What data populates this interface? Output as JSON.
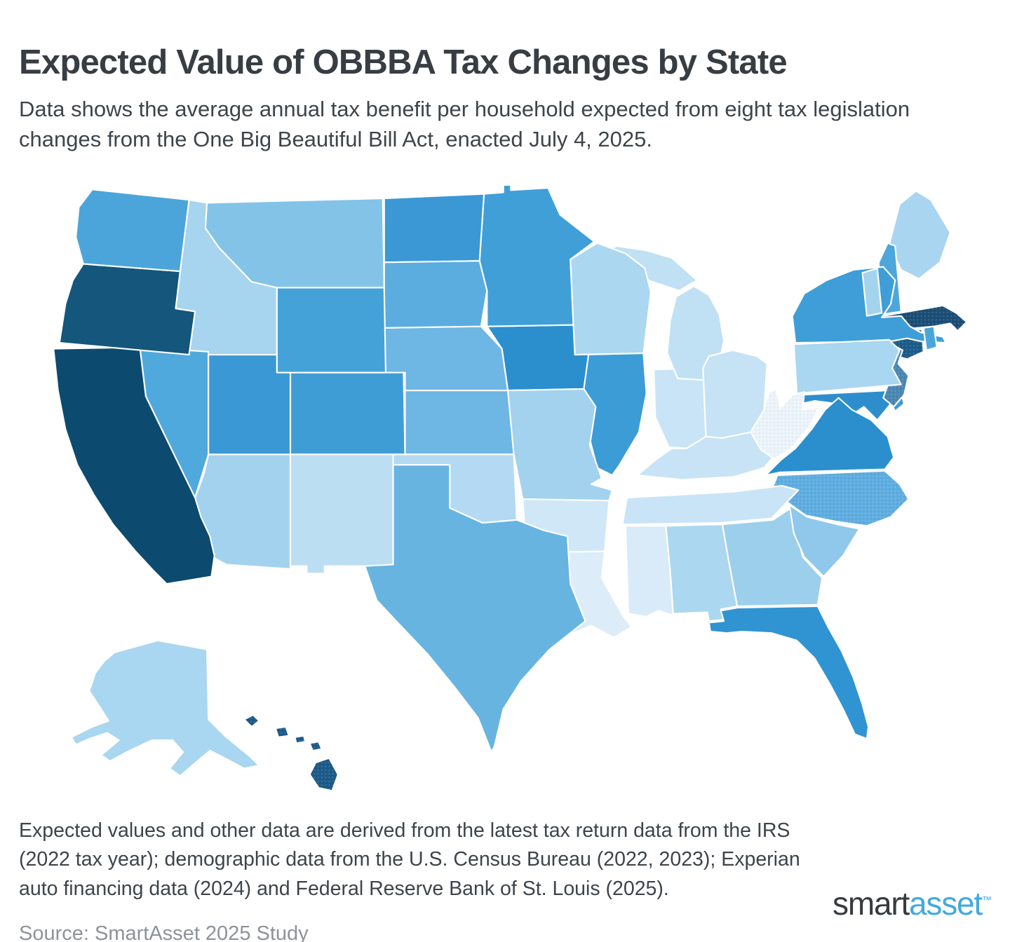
{
  "header": {
    "title": "Expected Value of OBBBA Tax Changes by State",
    "subtitle": "Data shows the average annual tax benefit per household expected from eight tax legislation changes from the One Big Beautiful Bill Act, enacted July 4, 2025."
  },
  "map": {
    "background_color": "#ffffff",
    "border_color": "#ffffff",
    "states": [
      {
        "id": "AL",
        "name": "Alabama",
        "fill": "#abd7f0",
        "textured": false
      },
      {
        "id": "AK",
        "name": "Alaska",
        "fill": "#a9d6f0",
        "textured": false
      },
      {
        "id": "AZ",
        "name": "Arizona",
        "fill": "#a2d2ee",
        "textured": false
      },
      {
        "id": "AR",
        "name": "Arkansas",
        "fill": "#d0e7f7",
        "textured": false
      },
      {
        "id": "CA",
        "name": "California",
        "fill": "#0d4a70",
        "textured": false
      },
      {
        "id": "CO",
        "name": "Colorado",
        "fill": "#3f9dd6",
        "textured": false
      },
      {
        "id": "CT",
        "name": "Connecticut",
        "fill": "#1d5c89",
        "textured": true
      },
      {
        "id": "DE",
        "name": "Delaware",
        "fill": "#3d99d3",
        "textured": false
      },
      {
        "id": "FL",
        "name": "Florida",
        "fill": "#3093d2",
        "textured": false
      },
      {
        "id": "GA",
        "name": "Georgia",
        "fill": "#9ccfec",
        "textured": false
      },
      {
        "id": "HI",
        "name": "Hawaii",
        "fill": "#1d5b89",
        "textured": true
      },
      {
        "id": "ID",
        "name": "Idaho",
        "fill": "#a7d4ef",
        "textured": false
      },
      {
        "id": "IL",
        "name": "Illinois",
        "fill": "#3c9cd6",
        "textured": false
      },
      {
        "id": "IN",
        "name": "Indiana",
        "fill": "#c9e4f6",
        "textured": false
      },
      {
        "id": "IA",
        "name": "Iowa",
        "fill": "#2b8fce",
        "textured": false
      },
      {
        "id": "KS",
        "name": "Kansas",
        "fill": "#6eb6e3",
        "textured": false
      },
      {
        "id": "KY",
        "name": "Kentucky",
        "fill": "#c7e3f5",
        "textured": false
      },
      {
        "id": "LA",
        "name": "Louisiana",
        "fill": "#dcedf9",
        "textured": false
      },
      {
        "id": "ME",
        "name": "Maine",
        "fill": "#a9d5f0",
        "textured": false
      },
      {
        "id": "MD",
        "name": "Maryland",
        "fill": "#2e8ecd",
        "textured": false
      },
      {
        "id": "MA",
        "name": "Massachusetts",
        "fill": "#1c4e76",
        "textured": true
      },
      {
        "id": "MI",
        "name": "Michigan",
        "fill": "#c0e0f4",
        "textured": false
      },
      {
        "id": "MN",
        "name": "Minnesota",
        "fill": "#409fd7",
        "textured": false
      },
      {
        "id": "MS",
        "name": "Mississippi",
        "fill": "#d9ebf8",
        "textured": false
      },
      {
        "id": "MO",
        "name": "Missouri",
        "fill": "#a2d2ee",
        "textured": false
      },
      {
        "id": "MT",
        "name": "Montana",
        "fill": "#83c3e8",
        "textured": false
      },
      {
        "id": "NE",
        "name": "Nebraska",
        "fill": "#6eb6e3",
        "textured": false
      },
      {
        "id": "NV",
        "name": "Nevada",
        "fill": "#50a9dc",
        "textured": false
      },
      {
        "id": "NH",
        "name": "New Hampshire",
        "fill": "#4ea7da",
        "textured": false
      },
      {
        "id": "NJ",
        "name": "New Jersey",
        "fill": "#4b87b2",
        "textured": true
      },
      {
        "id": "NM",
        "name": "New Mexico",
        "fill": "#bcdef3",
        "textured": false
      },
      {
        "id": "NY",
        "name": "New York",
        "fill": "#3f9ed7",
        "textured": false
      },
      {
        "id": "NC",
        "name": "North Carolina",
        "fill": "#5fade0",
        "textured": true
      },
      {
        "id": "ND",
        "name": "North Dakota",
        "fill": "#3b98d4",
        "textured": false
      },
      {
        "id": "OH",
        "name": "Ohio",
        "fill": "#c6e2f5",
        "textured": false
      },
      {
        "id": "OK",
        "name": "Oklahoma",
        "fill": "#b3daf2",
        "textured": false
      },
      {
        "id": "OR",
        "name": "Oregon",
        "fill": "#15567c",
        "textured": false
      },
      {
        "id": "PA",
        "name": "Pennsylvania",
        "fill": "#a9d6f0",
        "textured": false
      },
      {
        "id": "RI",
        "name": "Rhode Island",
        "fill": "#4aa6da",
        "textured": false
      },
      {
        "id": "SC",
        "name": "South Carolina",
        "fill": "#8fc8ea",
        "textured": false
      },
      {
        "id": "SD",
        "name": "South Dakota",
        "fill": "#5bade0",
        "textured": false
      },
      {
        "id": "TN",
        "name": "Tennessee",
        "fill": "#c9e4f6",
        "textured": false
      },
      {
        "id": "TX",
        "name": "Texas",
        "fill": "#68b4e1",
        "textured": false
      },
      {
        "id": "UT",
        "name": "Utah",
        "fill": "#3a98d4",
        "textured": false
      },
      {
        "id": "VT",
        "name": "Vermont",
        "fill": "#a4d3ee",
        "textured": false
      },
      {
        "id": "VA",
        "name": "Virginia",
        "fill": "#2b8fce",
        "textured": false
      },
      {
        "id": "WA",
        "name": "Washington",
        "fill": "#4ba5da",
        "textured": false
      },
      {
        "id": "WV",
        "name": "West Virginia",
        "fill": "#ecf4fb",
        "textured": true
      },
      {
        "id": "WI",
        "name": "Wisconsin",
        "fill": "#abd7f0",
        "textured": false
      },
      {
        "id": "WY",
        "name": "Wyoming",
        "fill": "#45a2d8",
        "textured": false
      }
    ]
  },
  "footer": {
    "note": "Expected values and other data are derived from the latest tax return data from the IRS (2022 tax year); demographic data from the U.S. Census Bureau (2022, 2023); Experian auto financing data (2024) and Federal Reserve Bank of St. Louis (2025).",
    "source": "Source: SmartAsset 2025 Study"
  },
  "logo": {
    "part1": "smart",
    "part2": "asset",
    "tm": "™",
    "part1_color": "#363b40",
    "part2_color": "#42a9e0"
  }
}
